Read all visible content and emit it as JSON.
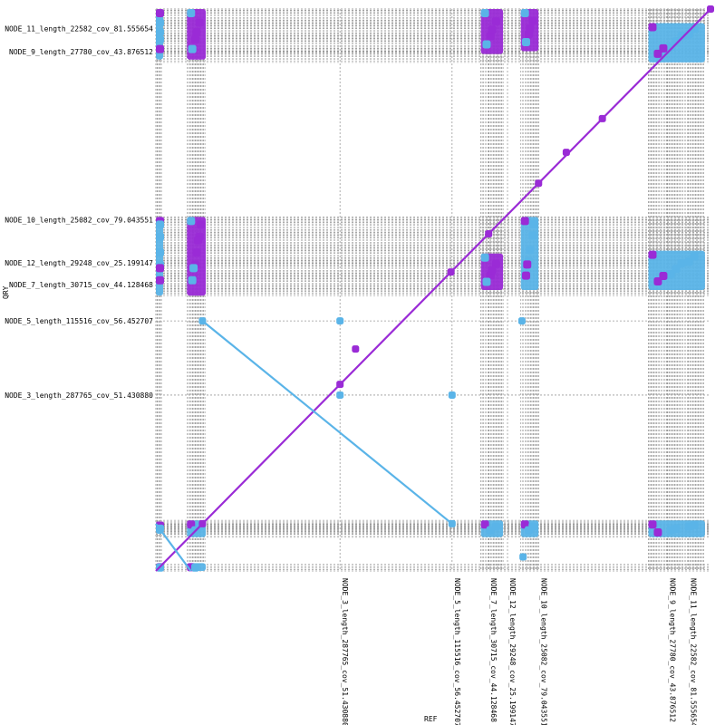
{
  "chart_data": {
    "type": "scatter",
    "title": "",
    "xlabel": "REF",
    "ylabel": "QRY",
    "xlim": [
      0,
      1000000
    ],
    "ylim": [
      0,
      1000000
    ],
    "grid": true,
    "legend": "none",
    "colors": {
      "forward": "#9a2bd6",
      "reverse": "#5ab4e8",
      "grid": "#9a9a9a"
    },
    "x_ticks": [
      {
        "label": "NODE_3_length_287765_cov_51.430880",
        "pos": 332000
      },
      {
        "label": "NODE_5_length_115516_cov_56.452707",
        "pos": 534000
      },
      {
        "label": "NODE_7_length_30715_cov_44.128468",
        "pos": 600000
      },
      {
        "label": "NODE_12_length_29248_cov_25.199147",
        "pos": 634000
      },
      {
        "label": "NODE_10_length_25082_cov_79.043551",
        "pos": 690000
      },
      {
        "label": "NODE_9_length_27780_cov_43.876512",
        "pos": 922000
      },
      {
        "label": "NODE_11_length_22582_cov_81.555654",
        "pos": 960000
      }
    ],
    "y_ticks": [
      {
        "label": "NODE_11_length_22582_cov_81.555654",
        "pos": 965000
      },
      {
        "label": "NODE_9_length_27780_cov_43.876512",
        "pos": 924000
      },
      {
        "label": "NODE_10_length_25082_cov_79.043551",
        "pos": 625000
      },
      {
        "label": "NODE_12_length_29248_cov_25.199147",
        "pos": 548000
      },
      {
        "label": "NODE_7_length_30715_cov_44.128468",
        "pos": 510000
      },
      {
        "label": "NODE_5_length_115516_cov_56.452707",
        "pos": 445000
      },
      {
        "label": "NODE_3_length_287765_cov_51.430880",
        "pos": 313000
      }
    ],
    "series": [
      {
        "orientation": "forward",
        "segments": [
          [
            [
              0,
              0
            ],
            [
              1000000,
              1000000
            ]
          ]
        ],
        "points": [
          [
            1000000,
            1000000
          ],
          [
            805000,
            805000
          ],
          [
            690000,
            690000
          ],
          [
            600000,
            600000
          ],
          [
            532000,
            532000
          ],
          [
            332000,
            332000
          ],
          [
            84000,
            84000
          ],
          [
            360000,
            395000
          ],
          [
            740000,
            745000
          ]
        ]
      },
      {
        "orientation": "reverse",
        "segments": [
          [
            [
              84000,
              445000
            ],
            [
              534000,
              84000
            ]
          ],
          [
            [
              0,
              84000
            ],
            [
              63000,
              0
            ]
          ]
        ],
        "points": [
          [
            332000,
            313000
          ],
          [
            534000,
            313000
          ],
          [
            534000,
            84000
          ],
          [
            332000,
            445000
          ],
          [
            84000,
            445000
          ],
          [
            662000,
            25000
          ],
          [
            660000,
            445000
          ]
        ]
      }
    ],
    "blocks": [
      {
        "x0": 0,
        "x1": 12000,
        "y0": 0,
        "y1": 14000,
        "orientation": "reverse"
      },
      {
        "x0": 0,
        "x1": 12000,
        "y0": 66000,
        "y1": 88000,
        "orientation": "reverse"
      },
      {
        "x0": 56000,
        "x1": 90000,
        "y0": 0,
        "y1": 14000,
        "orientation": "reverse"
      },
      {
        "x0": 56000,
        "x1": 90000,
        "y0": 60000,
        "y1": 90000,
        "orientation": "reverse"
      },
      {
        "x0": 586000,
        "x1": 626000,
        "y0": 60000,
        "y1": 90000,
        "orientation": "reverse"
      },
      {
        "x0": 658000,
        "x1": 690000,
        "y0": 60000,
        "y1": 90000,
        "orientation": "reverse"
      },
      {
        "x0": 888000,
        "x1": 990000,
        "y0": 60000,
        "y1": 90000,
        "orientation": "reverse"
      },
      {
        "x0": 0,
        "x1": 12000,
        "y0": 490000,
        "y1": 630000,
        "orientation": "reverse"
      },
      {
        "x0": 56000,
        "x1": 90000,
        "y0": 490000,
        "y1": 630000,
        "orientation": "forward"
      },
      {
        "x0": 586000,
        "x1": 626000,
        "y0": 500000,
        "y1": 565000,
        "orientation": "forward"
      },
      {
        "x0": 658000,
        "x1": 690000,
        "y0": 500000,
        "y1": 630000,
        "orientation": "reverse"
      },
      {
        "x0": 888000,
        "x1": 990000,
        "y0": 500000,
        "y1": 570000,
        "orientation": "reverse"
      },
      {
        "x0": 0,
        "x1": 12000,
        "y0": 910000,
        "y1": 1000000,
        "orientation": "reverse"
      },
      {
        "x0": 56000,
        "x1": 90000,
        "y0": 910000,
        "y1": 1000000,
        "orientation": "forward"
      },
      {
        "x0": 586000,
        "x1": 626000,
        "y0": 920000,
        "y1": 1000000,
        "orientation": "forward"
      },
      {
        "x0": 658000,
        "x1": 690000,
        "y0": 925000,
        "y1": 1000000,
        "orientation": "forward"
      },
      {
        "x0": 888000,
        "x1": 990000,
        "y0": 905000,
        "y1": 975000,
        "orientation": "reverse"
      }
    ]
  }
}
